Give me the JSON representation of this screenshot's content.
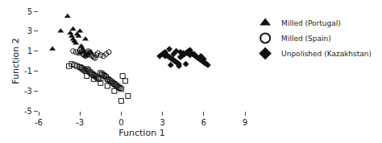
{
  "chart_data": {
    "type": "scatter",
    "xlabel": "Function 1",
    "ylabel": "Function 2",
    "xlim": [
      -6,
      9
    ],
    "ylim": [
      -5,
      5
    ],
    "xticks": [
      -6,
      -3,
      0,
      3,
      6,
      9
    ],
    "yticks": [
      -5,
      -3,
      -1,
      1,
      3,
      5
    ],
    "grid": false,
    "legend": "right",
    "series": [
      {
        "name": "Milled (Portugal)",
        "color": "#111111",
        "marker": "triangle-up",
        "x": [
          -5.0,
          -4.4,
          -3.9,
          -3.7,
          -3.6,
          -3.5,
          -3.4,
          -3.3,
          -3.2,
          -3.1,
          -3.0,
          -2.9,
          -2.8,
          -2.7,
          -2.6,
          -2.5,
          -2.4,
          -2.3,
          -2.2,
          -3.5,
          -3.0,
          -2.6
        ],
        "values": [
          1.2,
          3.0,
          4.5,
          2.8,
          2.5,
          2.2,
          2.0,
          1.8,
          2.7,
          2.5,
          0.8,
          1.5,
          1.2,
          0.9,
          0.6,
          0.5,
          0.7,
          0.8,
          0.9,
          3.2,
          3.0,
          2.2
        ]
      },
      {
        "name": "Milled (Spain)",
        "color": "#111111",
        "marker": "circle-open",
        "x": [
          -3.5,
          -3.3,
          -3.1,
          -3.0,
          -2.9,
          -2.8,
          -2.7,
          -2.6,
          -2.5,
          -2.4,
          -2.3,
          -2.2,
          -2.1,
          -2.0,
          -1.9,
          -1.8,
          -1.7,
          -1.5,
          -1.3,
          -1.1,
          -0.9
        ],
        "values": [
          1.0,
          0.9,
          0.8,
          1.1,
          1.2,
          0.7,
          0.6,
          0.5,
          0.8,
          1.0,
          0.9,
          0.7,
          0.5,
          0.4,
          0.3,
          0.6,
          0.8,
          0.6,
          0.5,
          0.7,
          0.9
        ]
      },
      {
        "name": "Unpolished (Kazakhstan)",
        "color": "#111111",
        "marker": "diamond",
        "x": [
          2.8,
          3.0,
          3.1,
          3.2,
          3.3,
          3.4,
          3.5,
          3.6,
          3.7,
          3.8,
          3.9,
          4.0,
          4.1,
          4.2,
          4.3,
          4.4,
          4.5,
          4.6,
          4.7,
          4.8,
          4.9,
          5.0,
          5.1,
          5.2,
          5.3,
          5.4,
          5.5,
          5.6,
          5.7,
          5.8,
          5.9,
          6.0,
          6.1,
          6.2,
          6.3,
          3.5,
          4.0,
          4.5,
          5.0,
          5.5,
          6.0,
          3.2,
          3.8,
          4.3,
          4.8,
          5.3,
          5.8,
          3.6,
          4.2,
          4.7
        ],
        "values": [
          0.5,
          0.7,
          0.8,
          0.9,
          0.6,
          0.5,
          0.4,
          0.3,
          0.2,
          0.1,
          0.0,
          -0.1,
          -0.2,
          -0.3,
          0.4,
          0.5,
          0.6,
          0.7,
          0.8,
          0.9,
          1.0,
          1.1,
          0.8,
          0.7,
          0.6,
          0.5,
          0.4,
          0.3,
          0.2,
          0.1,
          0.0,
          -0.1,
          -0.2,
          -0.3,
          -0.4,
          1.2,
          1.0,
          0.8,
          0.6,
          0.4,
          0.2,
          0.5,
          0.7,
          0.9,
          0.8,
          0.7,
          0.5,
          -0.4,
          -0.5,
          -0.3
        ]
      },
      {
        "color": "#111111",
        "marker": "square-open",
        "x": [
          -3.8,
          -3.6,
          -3.4,
          -3.2,
          -3.0,
          -2.9,
          -2.8,
          -2.7,
          -2.6,
          -2.5,
          -2.4,
          -2.3,
          -2.2,
          -2.1,
          -2.0,
          -1.9,
          -1.8,
          -1.7,
          -1.6,
          -1.5,
          -1.4,
          -1.3,
          -1.2,
          -1.1,
          -1.0,
          -0.9,
          -0.8,
          -0.7,
          -0.6,
          -0.5,
          -0.4,
          -0.3,
          -0.2,
          -0.1,
          0.0,
          0.1,
          0.3,
          0.5,
          -2.5,
          -2.0,
          -1.5,
          -1.0,
          -0.5,
          0.0
        ],
        "values": [
          -0.5,
          -0.3,
          -0.4,
          -0.5,
          -0.6,
          -0.7,
          -0.8,
          -0.9,
          -1.0,
          -0.8,
          -0.9,
          -1.1,
          -1.2,
          -1.3,
          -1.4,
          -1.5,
          -1.6,
          -1.7,
          -1.8,
          -1.2,
          -1.3,
          -1.4,
          -1.5,
          -1.6,
          -1.8,
          -1.9,
          -2.0,
          -2.1,
          -2.2,
          -2.3,
          -2.4,
          -2.5,
          -2.6,
          -2.7,
          -2.8,
          -1.5,
          -2.0,
          -3.5,
          -1.5,
          -1.8,
          -2.2,
          -2.5,
          -3.0,
          -4.0
        ]
      }
    ]
  }
}
